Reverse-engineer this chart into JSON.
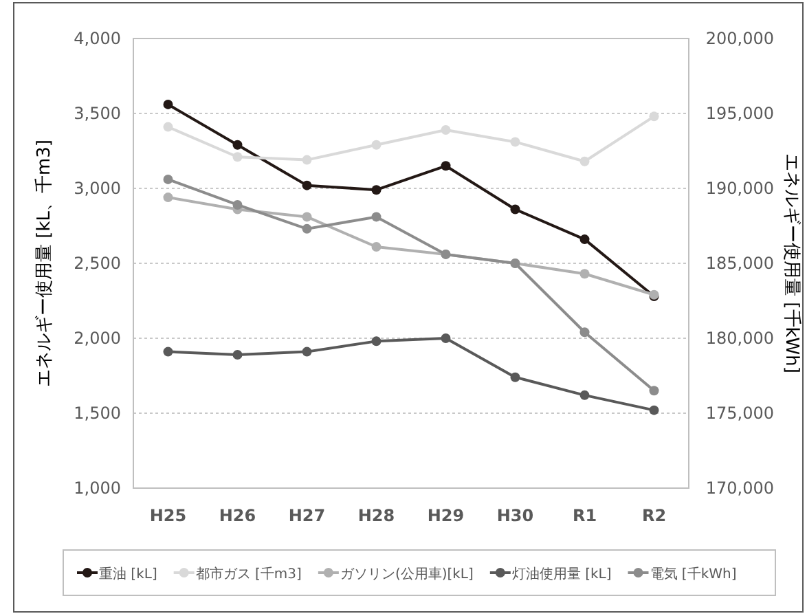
{
  "chart_data": {
    "type": "line",
    "ylabel": "エネルギー使用量 [kL、千m3]",
    "y2label": "エネルギー使用量 [千kWh]",
    "categories": [
      "H25",
      "H26",
      "H27",
      "H28",
      "H29",
      "H30",
      "R1",
      "R2"
    ],
    "ylim": [
      1000,
      4000
    ],
    "yticks": [
      {
        "value": 1000,
        "label": "1,000"
      },
      {
        "value": 1500,
        "label": "1,500"
      },
      {
        "value": 2000,
        "label": "2,000"
      },
      {
        "value": 2500,
        "label": "2,500"
      },
      {
        "value": 3000,
        "label": "3,000"
      },
      {
        "value": 3500,
        "label": "3,500"
      },
      {
        "value": 4000,
        "label": "4,000"
      }
    ],
    "y2lim": [
      170000,
      200000
    ],
    "y2ticks": [
      {
        "value": 170000,
        "label": "170,000"
      },
      {
        "value": 175000,
        "label": "175,000"
      },
      {
        "value": 180000,
        "label": "180,000"
      },
      {
        "value": 185000,
        "label": "185,000"
      },
      {
        "value": 190000,
        "label": "190,000"
      },
      {
        "value": 195000,
        "label": "195,000"
      },
      {
        "value": 200000,
        "label": "200,000"
      }
    ],
    "grid": "y",
    "legend": "bottom",
    "marker": "circle",
    "line_style": "solid",
    "series": [
      {
        "name": "重油 [kL]",
        "color": "#231815",
        "values": [
          3560,
          3290,
          3020,
          2990,
          3150,
          2860,
          2660,
          2280
        ]
      },
      {
        "name": "都市ガス [千m3]",
        "color": "#d9d9d9",
        "values": [
          3410,
          3210,
          3190,
          3290,
          3390,
          3310,
          3180,
          3480
        ]
      },
      {
        "name": "ガソリン(公用車)[kL]",
        "color": "#b0b0b0",
        "values": [
          2940,
          2860,
          2810,
          2610,
          2560,
          2500,
          2430,
          2290
        ]
      },
      {
        "name": "灯油使用量 [kL]",
        "color": "#595959",
        "values": [
          1910,
          1890,
          1910,
          1980,
          2000,
          1740,
          1620,
          1520
        ]
      },
      {
        "name": "電気 [千kWh]",
        "color": "#8c8c8c",
        "axis": "y2",
        "values": [
          190600,
          188900,
          187300,
          188100,
          185600,
          185000,
          180400,
          176500
        ]
      }
    ]
  }
}
